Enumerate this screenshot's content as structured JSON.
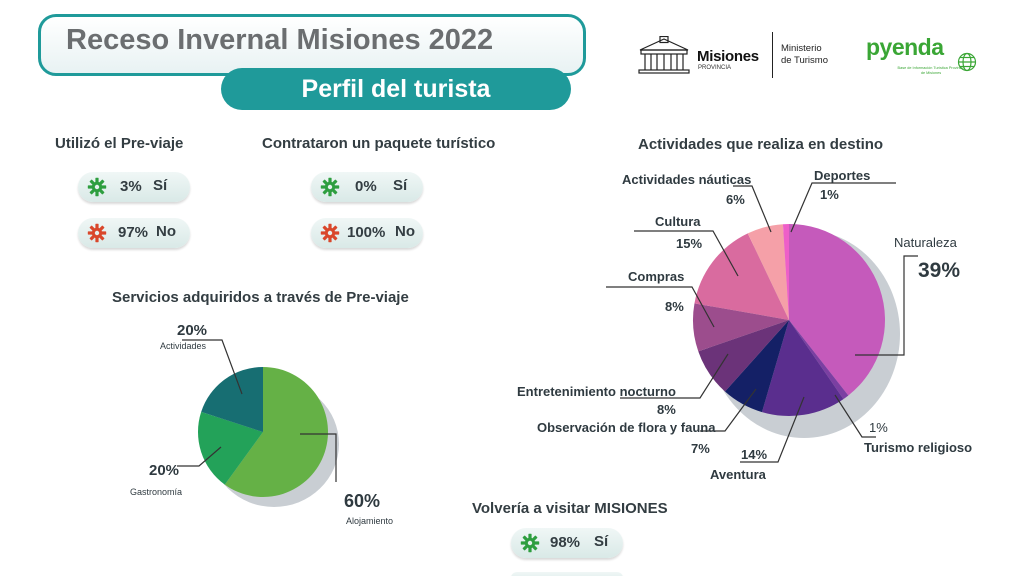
{
  "header": {
    "title": "Receso Invernal Misiones 2022",
    "subtitle": "Perfil del turista"
  },
  "logos": {
    "misiones_main": "Misiones",
    "misiones_sub": "PROVINCIA",
    "ministerio_line1": "Ministerio",
    "ministerio_line2": "de Turismo",
    "pyenda_word": "pyenda",
    "pyenda_sub": "Base de Información Turística Provincia de Misiones"
  },
  "stats": {
    "previaje": {
      "title": "Utilizó el Pre-viaje",
      "yes_value": "3%",
      "yes_label": "Sí",
      "no_value": "97%",
      "no_label": "No"
    },
    "paquete": {
      "title": "Contrataron un paquete turístico",
      "yes_value": "0%",
      "yes_label": "Sí",
      "no_value": "100%",
      "no_label": "No"
    },
    "volveria": {
      "title": "Volvería a visitar MISIONES",
      "yes_value": "98%",
      "yes_label": "Sí"
    }
  },
  "colors": {
    "teal": "#1f9a9a",
    "gear_yes": "#2e9e3f",
    "gear_no": "#d9472b"
  },
  "chart_data": [
    {
      "type": "pie",
      "title": "Servicios adquiridos a través de Pre-viaje",
      "series": [
        {
          "label": "Alojamiento",
          "value": 60,
          "display": "60%",
          "color": "#65b146"
        },
        {
          "label": "Gastronomía",
          "value": 20,
          "display": "20%",
          "color": "#23a259"
        },
        {
          "label": "Actividades",
          "value": 20,
          "display": "20%",
          "color": "#176e72"
        }
      ]
    },
    {
      "type": "pie",
      "title": "Actividades que realiza en destino",
      "series": [
        {
          "label": "Naturaleza",
          "value": 39,
          "display": "39%",
          "color": "#c55abb"
        },
        {
          "label": "Turismo religioso",
          "value": 1,
          "display": "1%",
          "color": "#7b3fa2"
        },
        {
          "label": "Aventura",
          "value": 14,
          "display": "14%",
          "color": "#5a2e8e"
        },
        {
          "label": "Observación de flora y fauna",
          "value": 7,
          "display": "7%",
          "color": "#142066"
        },
        {
          "label": "Entretenimiento nocturno",
          "value": 8,
          "display": "8%",
          "color": "#6b3379"
        },
        {
          "label": "Compras",
          "value": 8,
          "display": "8%",
          "color": "#9c4d8d"
        },
        {
          "label": "Cultura",
          "value": 15,
          "display": "15%",
          "color": "#d96b9f"
        },
        {
          "label": "Actividades náuticas",
          "value": 6,
          "display": "6%",
          "color": "#f5a0a8"
        },
        {
          "label": "Deportes",
          "value": 1,
          "display": "1%",
          "color": "#ee5fc8"
        }
      ]
    }
  ]
}
